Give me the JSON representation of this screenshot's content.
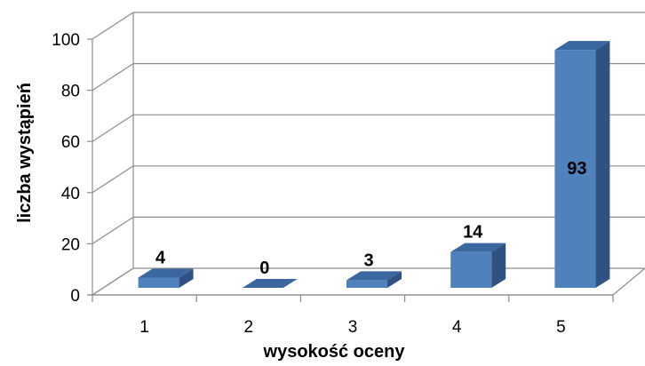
{
  "chart_data": {
    "type": "bar",
    "categories": [
      "1",
      "2",
      "3",
      "4",
      "5"
    ],
    "values": [
      4,
      0,
      3,
      14,
      93
    ],
    "data_labels": [
      "4",
      "0",
      "3",
      "14",
      "93"
    ],
    "xlabel": "wysokość oceny",
    "ylabel": "liczba wystąpień",
    "ylim": [
      0,
      100
    ],
    "yticks": [
      "0",
      "20",
      "40",
      "60",
      "80",
      "100"
    ],
    "grid": true,
    "legend": "none",
    "three_d": true,
    "bar_color": "#4f81bd",
    "bar_side_color": "#2f5282",
    "bar_top_color": "#3b67a0"
  }
}
